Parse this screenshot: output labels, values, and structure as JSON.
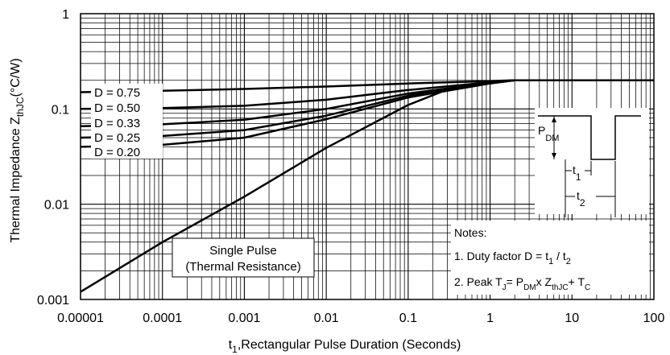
{
  "chart_data": {
    "type": "line",
    "xscale": "log",
    "yscale": "log",
    "xlim": [
      1e-05,
      100
    ],
    "ylim": [
      0.001,
      1
    ],
    "grid": true,
    "x_ticks": [
      {
        "value": 1e-05,
        "label": "0.00001"
      },
      {
        "value": 0.0001,
        "label": "0.0001"
      },
      {
        "value": 0.001,
        "label": "0.001"
      },
      {
        "value": 0.01,
        "label": "0.01"
      },
      {
        "value": 0.1,
        "label": "0.1"
      },
      {
        "value": 1,
        "label": "1"
      },
      {
        "value": 10,
        "label": "10"
      },
      {
        "value": 100,
        "label": "100"
      }
    ],
    "y_ticks": [
      {
        "value": 1,
        "label": "1"
      },
      {
        "value": 0.1,
        "label": "0.1"
      },
      {
        "value": 0.01,
        "label": "0.01"
      },
      {
        "value": 0.001,
        "label": "0.001"
      }
    ],
    "xlabel": {
      "pre": "t",
      "sub": "1",
      "post": ",Rectangular Pulse Duration (Seconds)"
    },
    "ylabel": {
      "pre": "Thermal Impedance Z",
      "sub": "thJC",
      "post": "(°C/W)"
    },
    "top_right_label": "",
    "series": [
      {
        "name": "D = 0.75",
        "x": [
          1e-05,
          0.0001,
          0.001,
          0.01,
          0.1,
          1,
          2,
          5,
          10,
          100
        ],
        "y": [
          0.15,
          0.155,
          0.162,
          0.172,
          0.185,
          0.196,
          0.2,
          0.2,
          0.2,
          0.2
        ]
      },
      {
        "name": "D = 0.50",
        "x": [
          1e-05,
          0.0001,
          0.001,
          0.01,
          0.1,
          1,
          2,
          5,
          10,
          100
        ],
        "y": [
          0.1,
          0.102,
          0.108,
          0.125,
          0.158,
          0.19,
          0.2,
          0.2,
          0.2,
          0.2
        ]
      },
      {
        "name": "D = 0.33",
        "x": [
          1e-05,
          0.0001,
          0.001,
          0.01,
          0.1,
          1,
          2,
          5,
          10,
          100
        ],
        "y": [
          0.066,
          0.069,
          0.077,
          0.1,
          0.145,
          0.188,
          0.2,
          0.2,
          0.2,
          0.2
        ]
      },
      {
        "name": "D = 0.25",
        "x": [
          1e-05,
          0.0001,
          0.001,
          0.01,
          0.1,
          1,
          2,
          5,
          10,
          100
        ],
        "y": [
          0.05,
          0.052,
          0.06,
          0.085,
          0.138,
          0.186,
          0.2,
          0.2,
          0.2,
          0.2
        ]
      },
      {
        "name": "D = 0.20",
        "x": [
          1e-05,
          0.0001,
          0.001,
          0.01,
          0.1,
          1,
          2,
          5,
          10,
          100
        ],
        "y": [
          0.04,
          0.042,
          0.05,
          0.078,
          0.132,
          0.185,
          0.2,
          0.2,
          0.2,
          0.2
        ]
      },
      {
        "name": "Single Pulse (Thermal Resistance)",
        "x": [
          1e-05,
          0.0001,
          0.001,
          0.01,
          0.1,
          0.3,
          1,
          2,
          5,
          10,
          100
        ],
        "y": [
          0.0012,
          0.004,
          0.012,
          0.039,
          0.11,
          0.16,
          0.19,
          0.2,
          0.2,
          0.2,
          0.2
        ]
      }
    ],
    "series_labels": [
      "D = 0.75",
      "D = 0.50",
      "D = 0.33",
      "D = 0.25",
      "D = 0.20"
    ],
    "single_pulse_label": [
      "Single Pulse",
      "(Thermal Resistance)"
    ],
    "inset": {
      "pdm_pre": "P",
      "pdm_sub": "DM",
      "t1_pre": "t",
      "t1_sub": "1",
      "t2_pre": "t",
      "t2_sub": "2"
    },
    "notes": {
      "title": "Notes:",
      "note1": {
        "pre": "1. Duty factor D = t",
        "sub1": "1",
        "mid": " / t",
        "sub2": "2"
      },
      "note2": {
        "pre": "2. Peak T",
        "s1": "J",
        "a": "= P",
        "s2": "DM",
        "b": "x Z",
        "s3": "thJC",
        "c": "+ T",
        "s4": "C"
      }
    }
  }
}
